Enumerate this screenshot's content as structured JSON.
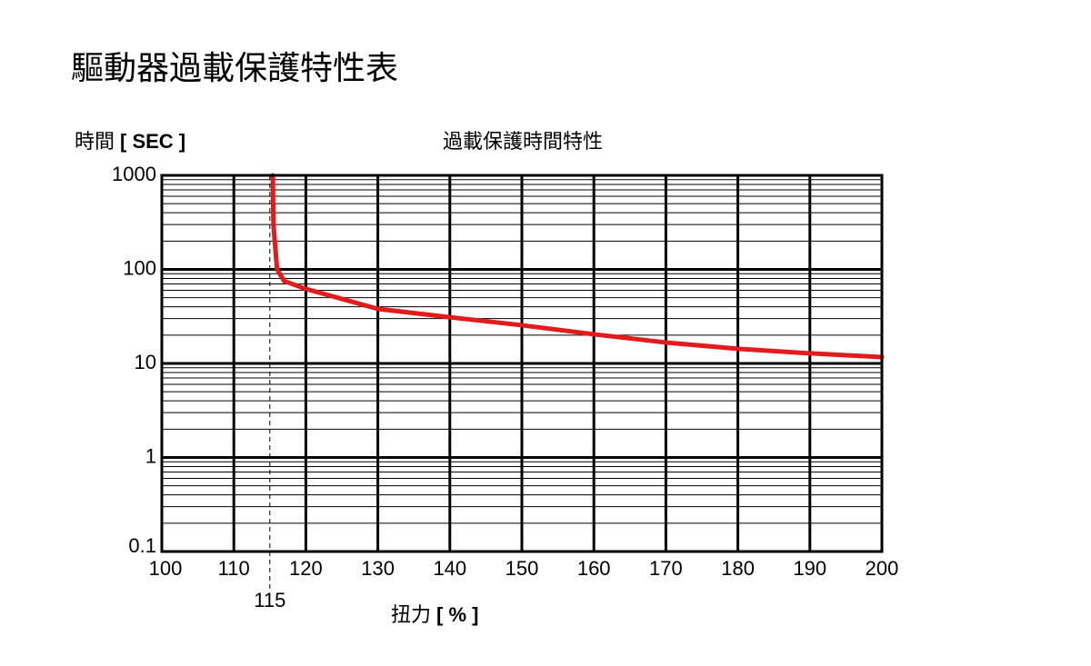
{
  "chart_data": {
    "type": "line",
    "title": "驅動器過載保護特性表",
    "subtitle": "過載保護時間特性",
    "ylabel": "時間",
    "ylabel_unit": "[ SEC ]",
    "xlabel": "扭力",
    "xlabel_unit": "[ % ]",
    "x": [
      115.4,
      115.5,
      116,
      117,
      120,
      130,
      140,
      150,
      160,
      170,
      180,
      190,
      200
    ],
    "series": [
      {
        "name": "過載保護時間",
        "color": "#e41b1b",
        "values": [
          1000,
          300,
          100,
          75,
          62,
          38,
          31,
          25.5,
          20.4,
          16.7,
          14.3,
          12.8,
          11.7
        ]
      }
    ],
    "xlim": [
      100,
      200
    ],
    "xticks": [
      100,
      110,
      120,
      130,
      140,
      150,
      160,
      170,
      180,
      190,
      200
    ],
    "ylim": [
      0.1,
      1000
    ],
    "yticks": [
      0.1,
      1,
      10,
      100,
      1000
    ],
    "ylog": true,
    "grid": true,
    "minor_grid": true,
    "legend": false,
    "vline": {
      "x": 115,
      "style": "dashed"
    }
  }
}
